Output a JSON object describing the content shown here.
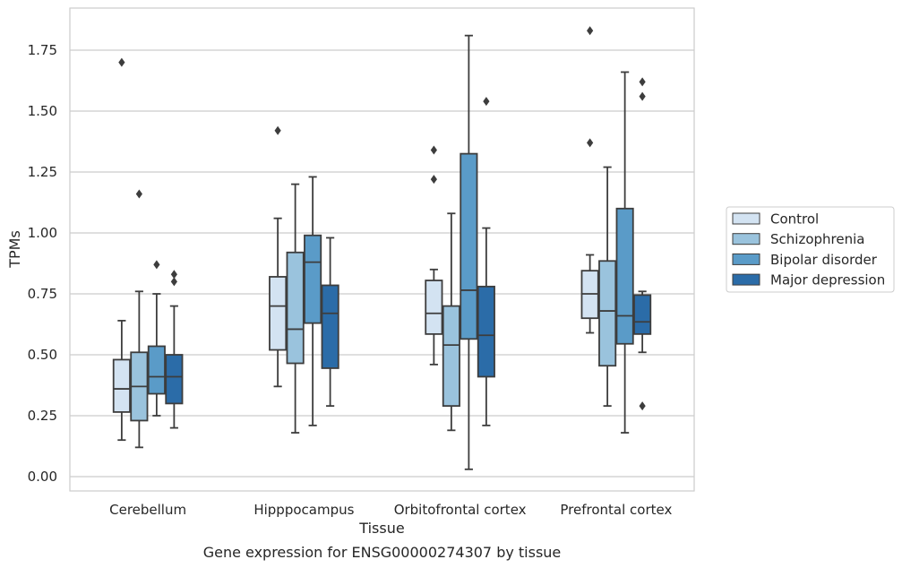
{
  "chart_data": {
    "type": "boxplot",
    "title": "Gene expression for ENSG00000274307 by tissue",
    "xlabel": "Tissue",
    "ylabel": "TPMs",
    "ylim": [
      -0.05,
      1.92
    ],
    "yticks": [
      "0.00",
      "0.25",
      "0.50",
      "0.75",
      "1.00",
      "1.25",
      "1.50",
      "1.75"
    ],
    "grid": "horizontal",
    "legend_position": "right",
    "categories": [
      "Cerebellum",
      "Hipppocampus",
      "Orbitofrontal cortex",
      "Prefrontal cortex"
    ],
    "series": [
      {
        "name": "Control",
        "color": "#d3e3f2",
        "boxes": [
          {
            "whisker_low": 0.15,
            "q1": 0.265,
            "median": 0.36,
            "q3": 0.48,
            "whisker_high": 0.64,
            "outliers": [
              1.7
            ]
          },
          {
            "whisker_low": 0.37,
            "q1": 0.52,
            "median": 0.7,
            "q3": 0.82,
            "whisker_high": 1.06,
            "outliers": [
              1.42
            ]
          },
          {
            "whisker_low": 0.46,
            "q1": 0.585,
            "median": 0.67,
            "q3": 0.805,
            "whisker_high": 0.85,
            "outliers": [
              1.22,
              1.34
            ]
          },
          {
            "whisker_low": 0.59,
            "q1": 0.65,
            "median": 0.75,
            "q3": 0.845,
            "whisker_high": 0.91,
            "outliers": [
              1.37,
              1.83
            ]
          }
        ]
      },
      {
        "name": "Schizophrenia",
        "color": "#9ac3dd",
        "boxes": [
          {
            "whisker_low": 0.12,
            "q1": 0.23,
            "median": 0.37,
            "q3": 0.51,
            "whisker_high": 0.76,
            "outliers": [
              1.16
            ]
          },
          {
            "whisker_low": 0.18,
            "q1": 0.465,
            "median": 0.605,
            "q3": 0.92,
            "whisker_high": 1.2,
            "outliers": []
          },
          {
            "whisker_low": 0.19,
            "q1": 0.29,
            "median": 0.54,
            "q3": 0.7,
            "whisker_high": 1.08,
            "outliers": []
          },
          {
            "whisker_low": 0.29,
            "q1": 0.455,
            "median": 0.68,
            "q3": 0.885,
            "whisker_high": 1.27,
            "outliers": []
          }
        ]
      },
      {
        "name": "Bipolar disorder",
        "color": "#5a9bc8",
        "boxes": [
          {
            "whisker_low": 0.25,
            "q1": 0.34,
            "median": 0.41,
            "q3": 0.535,
            "whisker_high": 0.75,
            "outliers": [
              0.87
            ]
          },
          {
            "whisker_low": 0.21,
            "q1": 0.63,
            "median": 0.88,
            "q3": 0.99,
            "whisker_high": 1.23,
            "outliers": []
          },
          {
            "whisker_low": 0.03,
            "q1": 0.565,
            "median": 0.765,
            "q3": 1.325,
            "whisker_high": 1.81,
            "outliers": []
          },
          {
            "whisker_low": 0.18,
            "q1": 0.545,
            "median": 0.66,
            "q3": 1.1,
            "whisker_high": 1.66,
            "outliers": []
          }
        ]
      },
      {
        "name": "Major depression",
        "color": "#2b6ca8",
        "boxes": [
          {
            "whisker_low": 0.2,
            "q1": 0.3,
            "median": 0.41,
            "q3": 0.5,
            "whisker_high": 0.7,
            "outliers": [
              0.8,
              0.83
            ]
          },
          {
            "whisker_low": 0.29,
            "q1": 0.445,
            "median": 0.67,
            "q3": 0.785,
            "whisker_high": 0.98,
            "outliers": []
          },
          {
            "whisker_low": 0.21,
            "q1": 0.41,
            "median": 0.58,
            "q3": 0.78,
            "whisker_high": 1.02,
            "outliers": [
              1.54
            ]
          },
          {
            "whisker_low": 0.51,
            "q1": 0.585,
            "median": 0.635,
            "q3": 0.745,
            "whisker_high": 0.76,
            "outliers": [
              0.29,
              1.56,
              1.62
            ]
          }
        ]
      }
    ]
  }
}
